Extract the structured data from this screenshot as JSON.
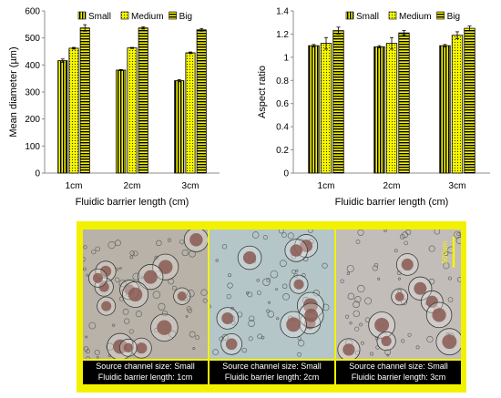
{
  "chart_data": [
    {
      "type": "bar",
      "categories": [
        "1cm",
        "2cm",
        "3cm"
      ],
      "series": [
        {
          "name": "Small",
          "values": [
            416,
            381,
            342
          ],
          "errors": [
            6,
            2,
            4
          ]
        },
        {
          "name": "Medium",
          "values": [
            462,
            463,
            445
          ],
          "errors": [
            3,
            2,
            3
          ]
        },
        {
          "name": "Big",
          "values": [
            537,
            537,
            530
          ],
          "errors": [
            12,
            4,
            5
          ]
        }
      ],
      "xlabel": "Fluidic barrier length (cm)",
      "ylabel": "Mean diameter (µm)",
      "ylim": [
        0,
        600
      ],
      "yticks": [
        "0",
        "100",
        "200",
        "300",
        "400",
        "500",
        "600"
      ],
      "legend_position": "top",
      "grid": false
    },
    {
      "type": "bar",
      "categories": [
        "1cm",
        "2cm",
        "3cm"
      ],
      "series": [
        {
          "name": "Small",
          "values": [
            1.1,
            1.09,
            1.1
          ],
          "errors": [
            0.01,
            0.01,
            0.01
          ]
        },
        {
          "name": "Medium",
          "values": [
            1.12,
            1.12,
            1.19
          ],
          "errors": [
            0.05,
            0.05,
            0.03
          ]
        },
        {
          "name": "Big",
          "values": [
            1.23,
            1.21,
            1.25
          ],
          "errors": [
            0.03,
            0.02,
            0.02
          ]
        }
      ],
      "xlabel": "Fluidic barrier length (cm)",
      "ylabel": "Aspect ratio",
      "ylim": [
        0,
        1.4
      ],
      "yticks": [
        "0",
        "0.2",
        "0.4",
        "0.6",
        "0.8",
        "1",
        "1.2",
        "1.4"
      ],
      "legend_position": "top",
      "grid": false
    }
  ],
  "series_style": {
    "Small": {
      "fill": "#f5f500",
      "pattern": "vertical-stripes",
      "stroke": "#000000"
    },
    "Medium": {
      "fill": "#f5f500",
      "pattern": "dots",
      "stroke": "#000000"
    },
    "Big": {
      "fill": "#f5f500",
      "pattern": "horizontal-stripes",
      "stroke": "#000000"
    }
  },
  "micrographs": {
    "border_color": "#f2f200",
    "scale_bar_label": "500μm",
    "panels": [
      {
        "line1": "Source channel size: Small",
        "line2": "Fluidic barrier length: 1cm",
        "tint": "#b9b2a8"
      },
      {
        "line1": "Source channel size: Small",
        "line2": "Fluidic barrier length: 2cm",
        "tint": "#b4c6c8"
      },
      {
        "line1": "Source channel size: Small",
        "line2": "Fluidic barrier length: 3cm",
        "tint": "#c2bdb8"
      }
    ]
  }
}
